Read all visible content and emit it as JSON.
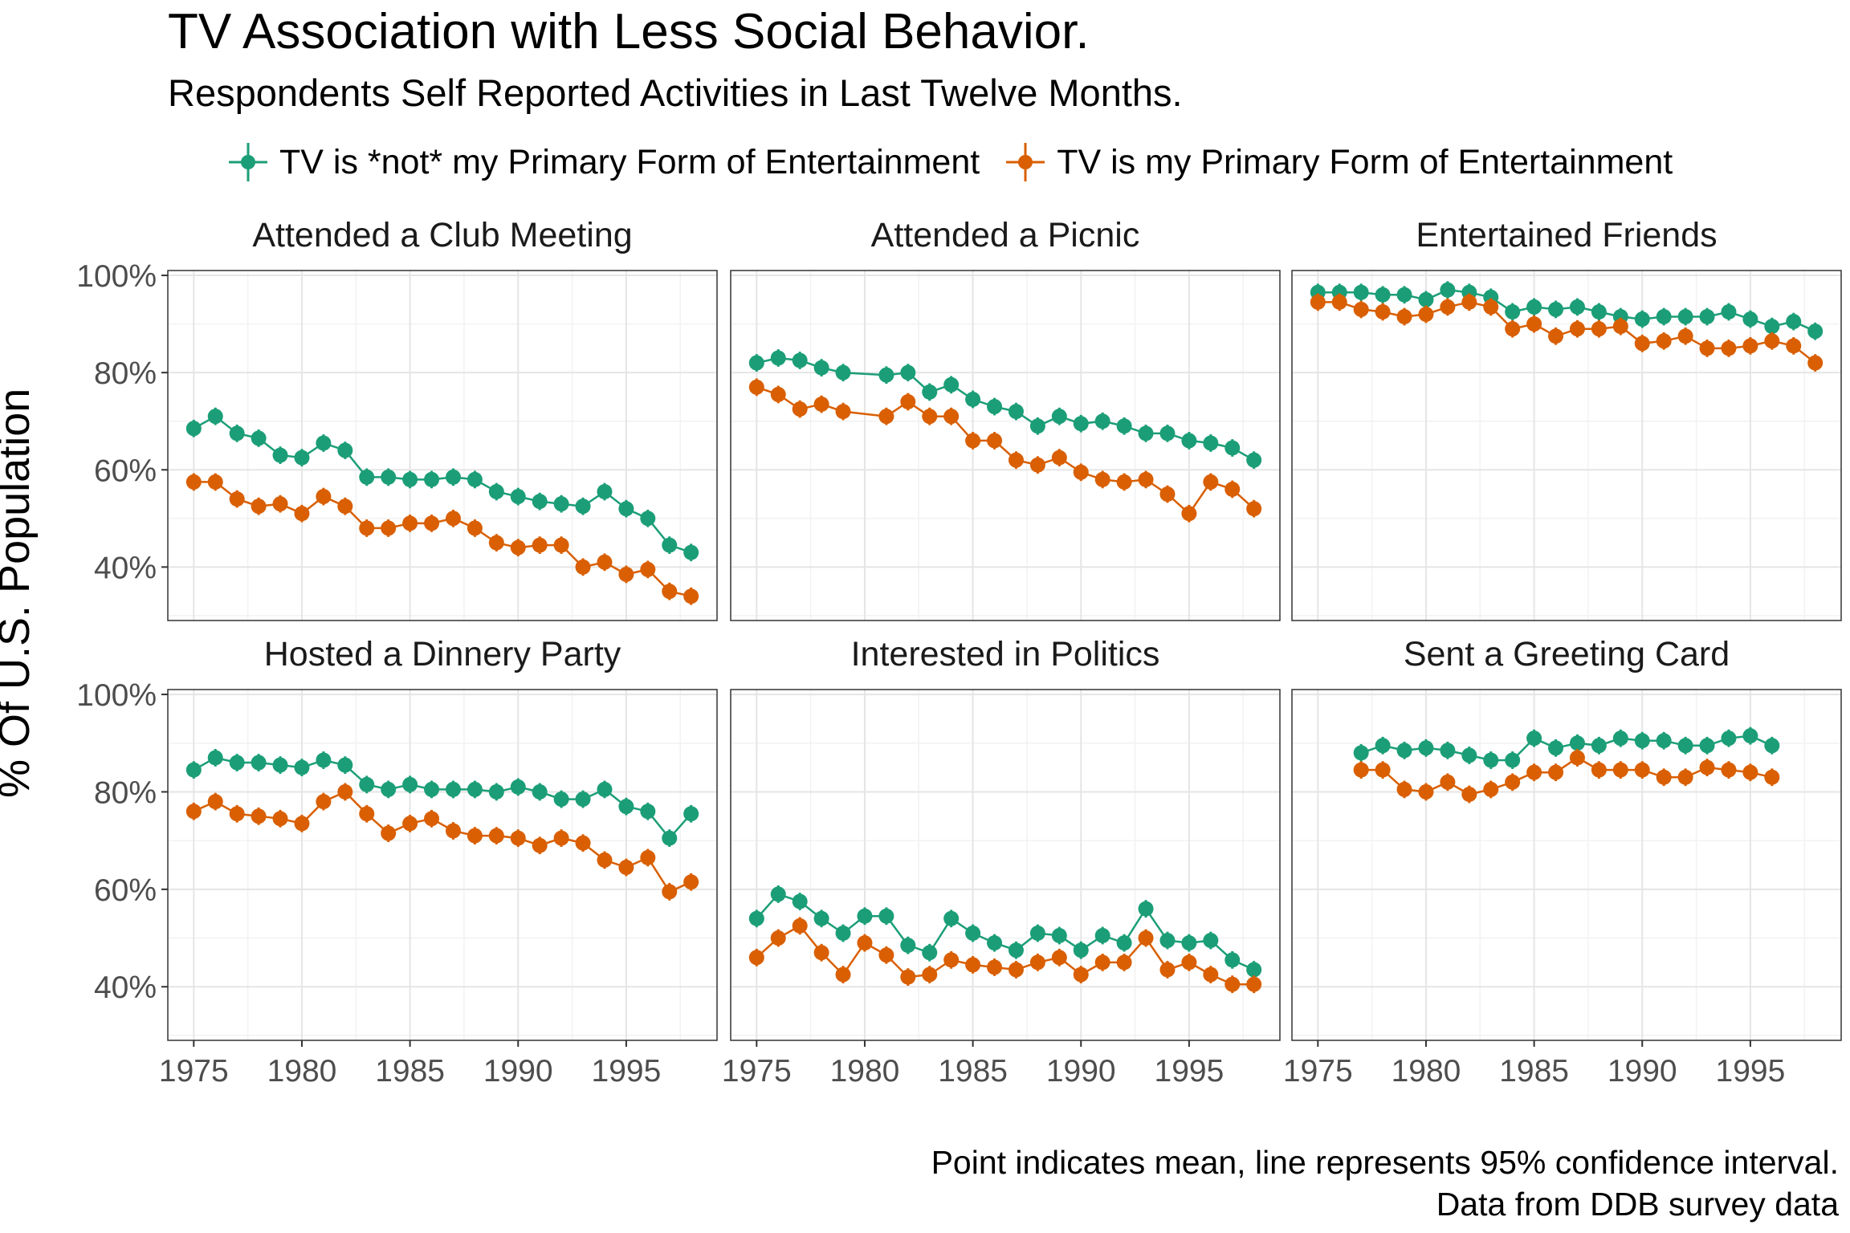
{
  "title": "TV Association with Less Social Behavior.",
  "subtitle": "Respondents Self Reported Activities in Last Twelve Months.",
  "ylabel": "% Of U.S. Population",
  "caption": [
    "Point indicates mean, line represents 95% confidence interval.",
    "Data from DDB survey data"
  ],
  "legend": [
    {
      "label": "TV is *not* my Primary Form of Entertainment",
      "color": "#1b9e77"
    },
    {
      "label": "TV is my Primary Form of Entertainment",
      "color": "#d95f02"
    }
  ],
  "chart_data": {
    "type": "line",
    "facets": [
      "Attended a Club Meeting",
      "Attended a Picnic",
      "Entertained Friends",
      "Hosted a Dinnery Party",
      "Interested in Politics",
      "Sent a Greeting Card"
    ],
    "x_ticks": [
      1975,
      1980,
      1985,
      1990,
      1995
    ],
    "xlim": [
      1973.8,
      1999.2
    ],
    "y_ticks": [
      0.4,
      0.6,
      0.8,
      1.0
    ],
    "y_tick_labels": [
      "40%",
      "60%",
      "80%",
      "100%"
    ],
    "ylim": [
      0.29,
      1.01
    ],
    "grid": true,
    "legend_position": "top",
    "series": [
      {
        "name": "TV is *not* my Primary Form of Entertainment",
        "color": "#1b9e77"
      },
      {
        "name": "TV is my Primary Form of Entertainment",
        "color": "#d95f02"
      }
    ],
    "panels": [
      {
        "facet": "Attended a Club Meeting",
        "x": [
          1975,
          1976,
          1977,
          1978,
          1979,
          1980,
          1981,
          1982,
          1983,
          1984,
          1985,
          1986,
          1987,
          1988,
          1989,
          1990,
          1991,
          1992,
          1993,
          1994,
          1995,
          1996,
          1997,
          1998
        ],
        "not_tv": [
          0.685,
          0.71,
          0.675,
          0.665,
          0.63,
          0.625,
          0.655,
          0.64,
          0.585,
          0.585,
          0.58,
          0.58,
          0.585,
          0.58,
          0.555,
          0.545,
          0.535,
          0.53,
          0.525,
          0.555,
          0.52,
          0.5,
          0.445,
          0.43
        ],
        "tv": [
          0.575,
          0.575,
          0.54,
          0.525,
          0.53,
          0.51,
          0.545,
          0.525,
          0.48,
          0.48,
          0.49,
          0.49,
          0.5,
          0.48,
          0.45,
          0.44,
          0.445,
          0.445,
          0.4,
          0.41,
          0.385,
          0.395,
          0.35,
          0.34
        ]
      },
      {
        "facet": "Attended a Picnic",
        "x": [
          1975,
          1976,
          1977,
          1978,
          1979,
          1981,
          1982,
          1983,
          1984,
          1985,
          1986,
          1987,
          1988,
          1989,
          1990,
          1991,
          1992,
          1993,
          1994,
          1995,
          1996,
          1997,
          1998
        ],
        "not_tv": [
          0.82,
          0.83,
          0.825,
          0.81,
          0.8,
          0.795,
          0.8,
          0.76,
          0.775,
          0.745,
          0.73,
          0.72,
          0.69,
          0.71,
          0.695,
          0.7,
          0.69,
          0.675,
          0.675,
          0.66,
          0.655,
          0.645,
          0.62
        ],
        "tv": [
          0.77,
          0.755,
          0.725,
          0.735,
          0.72,
          0.71,
          0.74,
          0.71,
          0.71,
          0.66,
          0.66,
          0.62,
          0.61,
          0.625,
          0.595,
          0.58,
          0.575,
          0.58,
          0.55,
          0.51,
          0.575,
          0.56,
          0.52
        ]
      },
      {
        "facet": "Entertained Friends",
        "x": [
          1975,
          1976,
          1977,
          1978,
          1979,
          1980,
          1981,
          1982,
          1983,
          1984,
          1985,
          1986,
          1987,
          1988,
          1989,
          1990,
          1991,
          1992,
          1993,
          1994,
          1995,
          1996,
          1997,
          1998
        ],
        "not_tv": [
          0.965,
          0.965,
          0.965,
          0.96,
          0.96,
          0.95,
          0.97,
          0.965,
          0.955,
          0.925,
          0.935,
          0.93,
          0.935,
          0.925,
          0.915,
          0.91,
          0.915,
          0.915,
          0.915,
          0.925,
          0.91,
          0.895,
          0.905,
          0.885
        ],
        "tv": [
          0.945,
          0.945,
          0.93,
          0.925,
          0.915,
          0.92,
          0.935,
          0.945,
          0.935,
          0.89,
          0.9,
          0.875,
          0.89,
          0.89,
          0.895,
          0.86,
          0.865,
          0.875,
          0.85,
          0.85,
          0.855,
          0.865,
          0.855,
          0.82
        ]
      },
      {
        "facet": "Hosted a Dinnery Party",
        "x": [
          1975,
          1976,
          1977,
          1978,
          1979,
          1980,
          1981,
          1982,
          1983,
          1984,
          1985,
          1986,
          1987,
          1988,
          1989,
          1990,
          1991,
          1992,
          1993,
          1994,
          1995,
          1996,
          1997,
          1998
        ],
        "not_tv": [
          0.845,
          0.87,
          0.86,
          0.86,
          0.855,
          0.85,
          0.865,
          0.855,
          0.815,
          0.805,
          0.815,
          0.805,
          0.805,
          0.805,
          0.8,
          0.81,
          0.8,
          0.785,
          0.785,
          0.805,
          0.77,
          0.76,
          0.705,
          0.755
        ],
        "tv": [
          0.76,
          0.78,
          0.755,
          0.75,
          0.745,
          0.735,
          0.78,
          0.8,
          0.755,
          0.715,
          0.735,
          0.745,
          0.72,
          0.71,
          0.71,
          0.705,
          0.69,
          0.705,
          0.695,
          0.66,
          0.645,
          0.665,
          0.595,
          0.615
        ]
      },
      {
        "facet": "Interested in Politics",
        "x": [
          1975,
          1976,
          1977,
          1978,
          1979,
          1980,
          1981,
          1982,
          1983,
          1984,
          1985,
          1986,
          1987,
          1988,
          1989,
          1990,
          1991,
          1992,
          1993,
          1994,
          1995,
          1996,
          1997,
          1998
        ],
        "not_tv": [
          0.54,
          0.59,
          0.575,
          0.54,
          0.51,
          0.545,
          0.545,
          0.485,
          0.47,
          0.54,
          0.51,
          0.49,
          0.475,
          0.51,
          0.505,
          0.475,
          0.505,
          0.49,
          0.56,
          0.495,
          0.49,
          0.495,
          0.455,
          0.435
        ],
        "tv": [
          0.46,
          0.5,
          0.525,
          0.47,
          0.425,
          0.49,
          0.465,
          0.42,
          0.425,
          0.455,
          0.445,
          0.44,
          0.435,
          0.45,
          0.46,
          0.425,
          0.45,
          0.45,
          0.5,
          0.435,
          0.45,
          0.425,
          0.405,
          0.405
        ]
      },
      {
        "facet": "Sent a Greeting Card",
        "x": [
          1977,
          1978,
          1979,
          1980,
          1981,
          1982,
          1983,
          1984,
          1985,
          1986,
          1987,
          1988,
          1989,
          1990,
          1991,
          1992,
          1993,
          1994,
          1995,
          1996
        ],
        "not_tv": [
          0.88,
          0.895,
          0.885,
          0.89,
          0.885,
          0.875,
          0.865,
          0.865,
          0.91,
          0.89,
          0.9,
          0.895,
          0.91,
          0.905,
          0.905,
          0.895,
          0.895,
          0.91,
          0.915,
          0.895
        ],
        "tv": [
          0.845,
          0.845,
          0.805,
          0.8,
          0.82,
          0.795,
          0.805,
          0.82,
          0.84,
          0.84,
          0.87,
          0.845,
          0.845,
          0.845,
          0.83,
          0.83,
          0.85,
          0.845,
          0.84,
          0.83
        ]
      }
    ]
  }
}
